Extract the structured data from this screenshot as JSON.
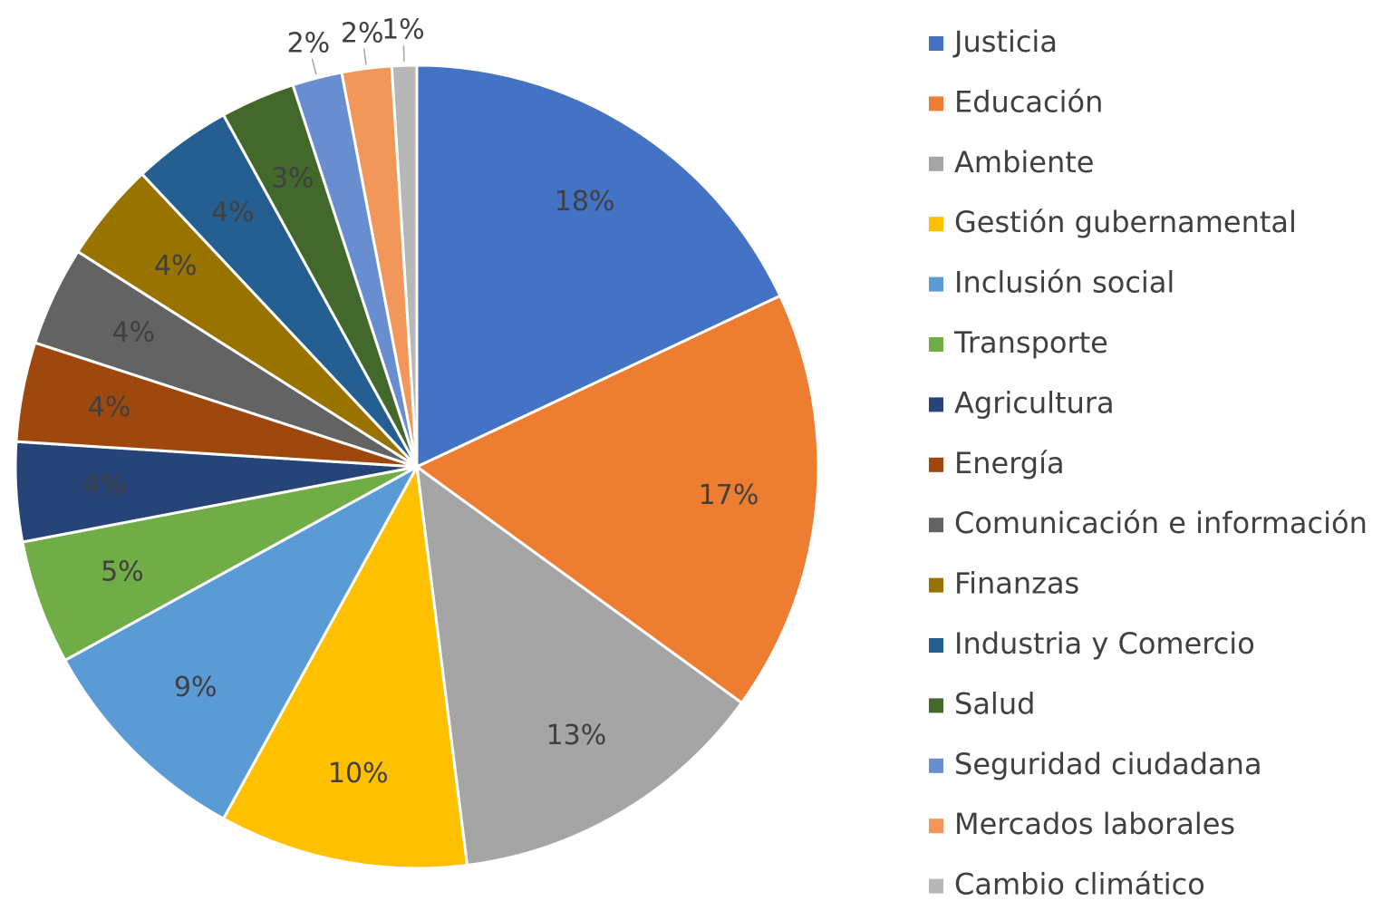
{
  "chart_data": {
    "type": "pie",
    "categories": [
      "Justicia",
      "Educación",
      "Ambiente",
      "Gestión gubernamental",
      "Inclusión social",
      "Transporte",
      "Agricultura",
      "Energía",
      "Comunicación e información",
      "Finanzas",
      "Industria y Comercio",
      "Salud",
      "Seguridad ciudadana",
      "Mercados laborales",
      "Cambio climático"
    ],
    "values": [
      18,
      17,
      13,
      10,
      9,
      5,
      4,
      4,
      4,
      4,
      4,
      3,
      2,
      2,
      1
    ],
    "value_labels": [
      "18%",
      "17%",
      "13%",
      "10%",
      "9%",
      "5%",
      "4%",
      "4%",
      "4%",
      "4%",
      "4%",
      "3%",
      "2%",
      "2%",
      "1%"
    ],
    "colors": [
      "#4472c4",
      "#ed7d31",
      "#a5a5a5",
      "#ffc000",
      "#5b9bd5",
      "#70ad47",
      "#264478",
      "#9e480e",
      "#636363",
      "#997300",
      "#255e91",
      "#43682b",
      "#698ed0",
      "#f1975a",
      "#b7b7b7"
    ],
    "legend": "right"
  }
}
